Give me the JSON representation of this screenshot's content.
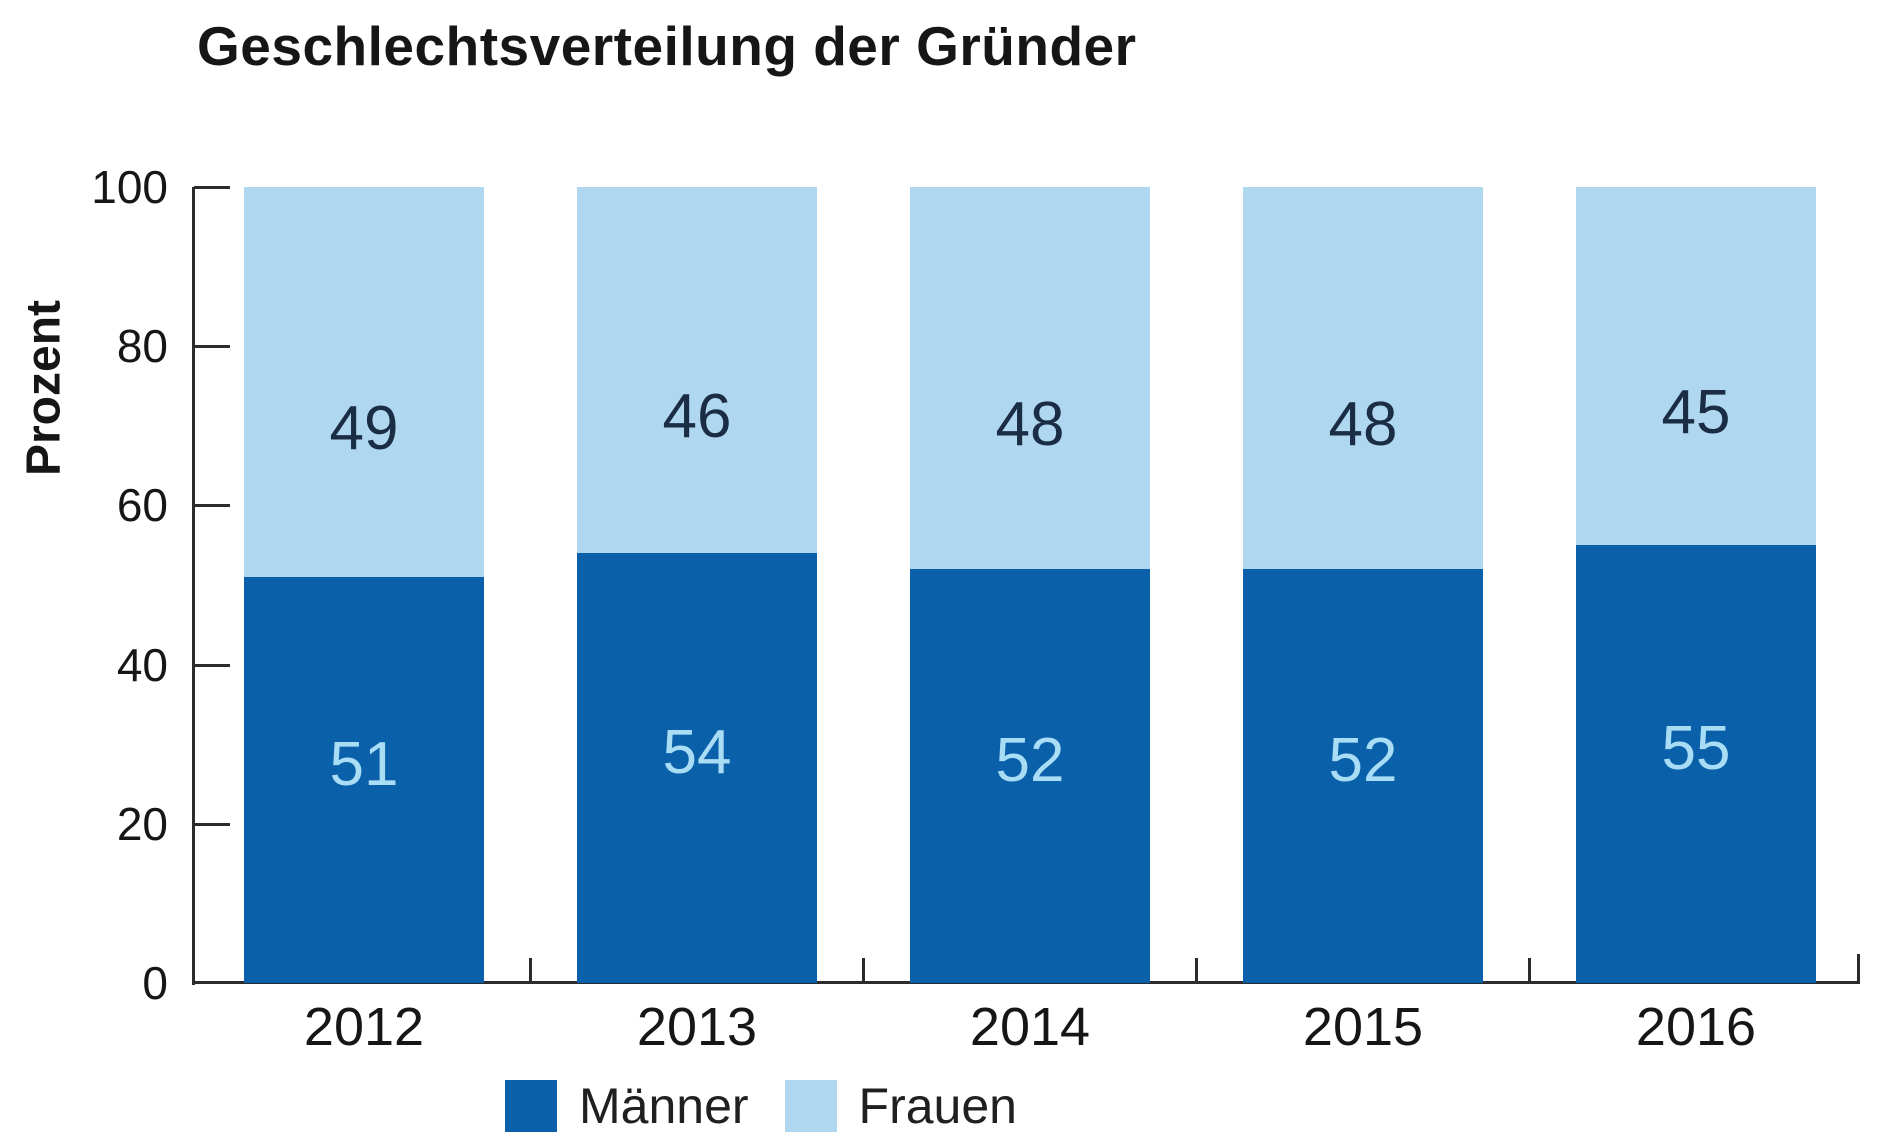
{
  "title": "Geschlechtsverteilung der Gründer",
  "chart_data": {
    "type": "bar",
    "stacked": true,
    "categories": [
      "2012",
      "2013",
      "2014",
      "2015",
      "2016"
    ],
    "series": [
      {
        "name": "Männer",
        "values": [
          51,
          54,
          52,
          52,
          55
        ],
        "color": "#0A60A9",
        "label_color": "#A9DCF5"
      },
      {
        "name": "Frauen",
        "values": [
          49,
          46,
          48,
          48,
          45
        ],
        "color": "#AFD8F0",
        "label_color": "#1B2D44"
      }
    ],
    "title": "Geschlechtsverteilung der Gründer",
    "xlabel": "",
    "ylabel": "Prozent",
    "ylim": [
      0,
      100
    ],
    "y_ticks": [
      0,
      20,
      40,
      60,
      80,
      100
    ],
    "grid": false,
    "legend_position": "bottom-center",
    "bar_value_labels": true,
    "axis_color": "#2b2b2b"
  }
}
